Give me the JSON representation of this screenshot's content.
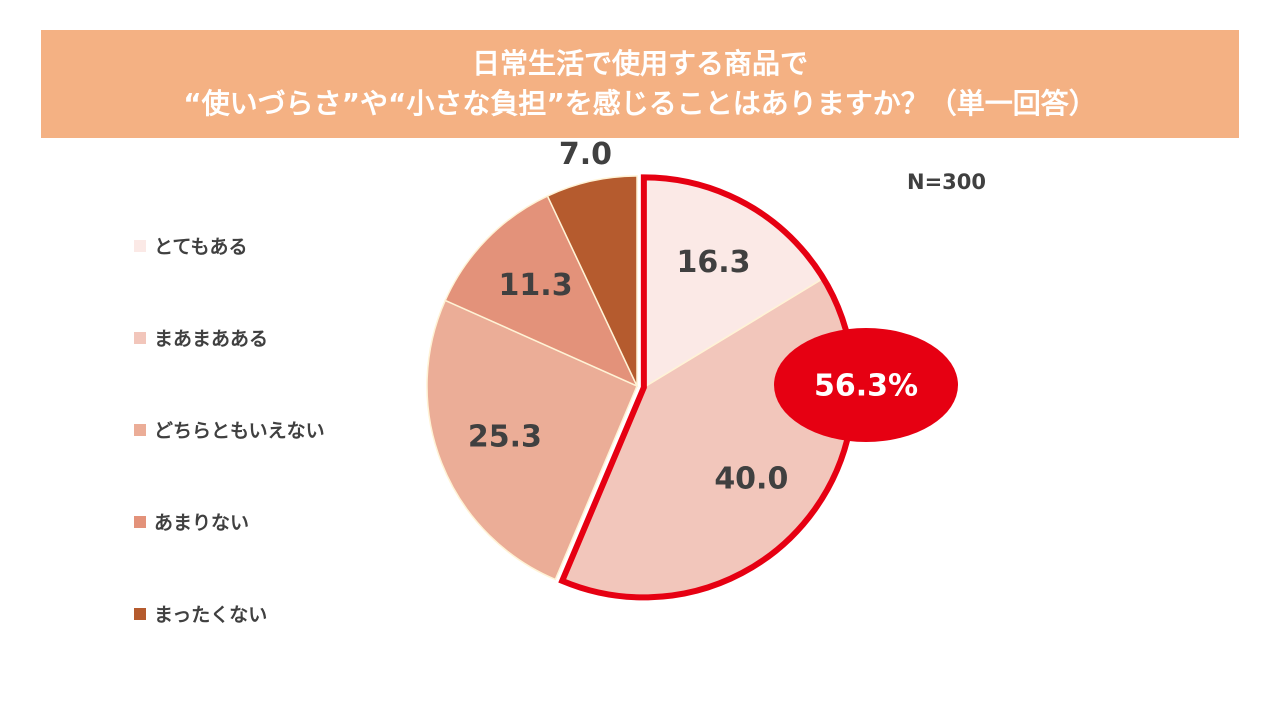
{
  "title": {
    "line1": "日常生活で使用する商品で",
    "line2": "“使いづらさ”や“小さな負担”を感じることはありますか？（単一回答）"
  },
  "n_label": "N=300",
  "highlight_label": "56.3%",
  "colors": {
    "title_band": "#f4b183",
    "highlight": "#e60012",
    "label_text": "#404040"
  },
  "chart_data": {
    "type": "pie",
    "title": "日常生活で使用する商品で“使いづらさ”や“小さな負担”を感じることはありますか？（単一回答）",
    "start_angle": "12 o'clock",
    "direction": "clockwise",
    "legend_position": "left",
    "slices": [
      {
        "name": "とてもある",
        "value": 16.3,
        "label": "16.3",
        "color": "#fbe9e6"
      },
      {
        "name": "まあまあある",
        "value": 40.0,
        "label": "40.0",
        "color": "#f2c6bb"
      },
      {
        "name": "どちらともいえない",
        "value": 25.3,
        "label": "25.3",
        "color": "#ebad97"
      },
      {
        "name": "あまりない",
        "value": 11.3,
        "label": "11.3",
        "color": "#e3927a"
      },
      {
        "name": "まったくない",
        "value": 7.0,
        "label": "7.0",
        "color": "#b55b2e"
      }
    ],
    "highlighted_slices": [
      "とてもある",
      "まあまあある"
    ],
    "highlight_total": "56.3%"
  }
}
